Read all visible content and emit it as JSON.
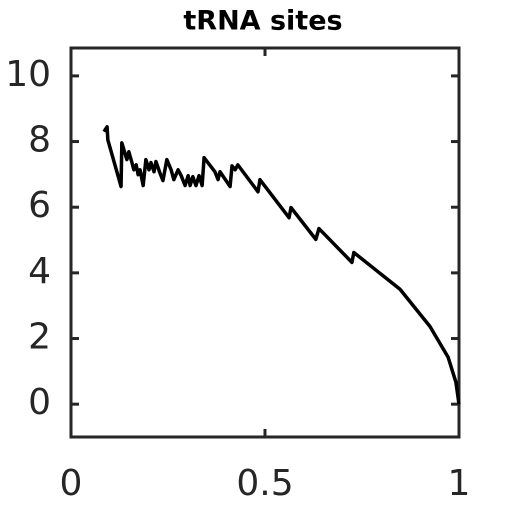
{
  "chart_data": {
    "type": "line",
    "title": "tRNA sites",
    "x": [
      0.085,
      0.093,
      0.095,
      0.129,
      0.131,
      0.144,
      0.149,
      0.157,
      0.162,
      0.168,
      0.173,
      0.178,
      0.186,
      0.193,
      0.201,
      0.206,
      0.214,
      0.219,
      0.229,
      0.237,
      0.247,
      0.258,
      0.265,
      0.276,
      0.284,
      0.294,
      0.302,
      0.307,
      0.314,
      0.322,
      0.33,
      0.338,
      0.343,
      0.371,
      0.379,
      0.384,
      0.41,
      0.415,
      0.423,
      0.43,
      0.482,
      0.487,
      0.562,
      0.567,
      0.631,
      0.639,
      0.724,
      0.729,
      0.848,
      0.925,
      0.972,
      0.992,
      1
    ],
    "series": [
      {
        "color": "#000000",
        "values": [
          8.3,
          8.45,
          8.05,
          6.63,
          7.96,
          7.45,
          7.69,
          7.36,
          7.14,
          7.29,
          6.99,
          7.14,
          6.66,
          7.45,
          7.14,
          7.36,
          7.08,
          7.39,
          7.05,
          6.81,
          7.45,
          7.14,
          6.84,
          7.14,
          6.96,
          6.66,
          6.96,
          6.66,
          6.93,
          6.66,
          6.96,
          6.66,
          7.51,
          7.08,
          6.84,
          7.08,
          6.63,
          7.26,
          7.14,
          7.29,
          6.47,
          6.84,
          5.68,
          5.99,
          5.02,
          5.35,
          4.32,
          4.62,
          3.5,
          2.37,
          1.43,
          0.67,
          0
        ]
      }
    ],
    "xlim": [
      0,
      1
    ],
    "xticks": [
      0,
      0.5,
      1
    ],
    "ylim": [
      -1,
      10.85
    ],
    "yticks": [
      0,
      2,
      4,
      6,
      8,
      10
    ]
  }
}
